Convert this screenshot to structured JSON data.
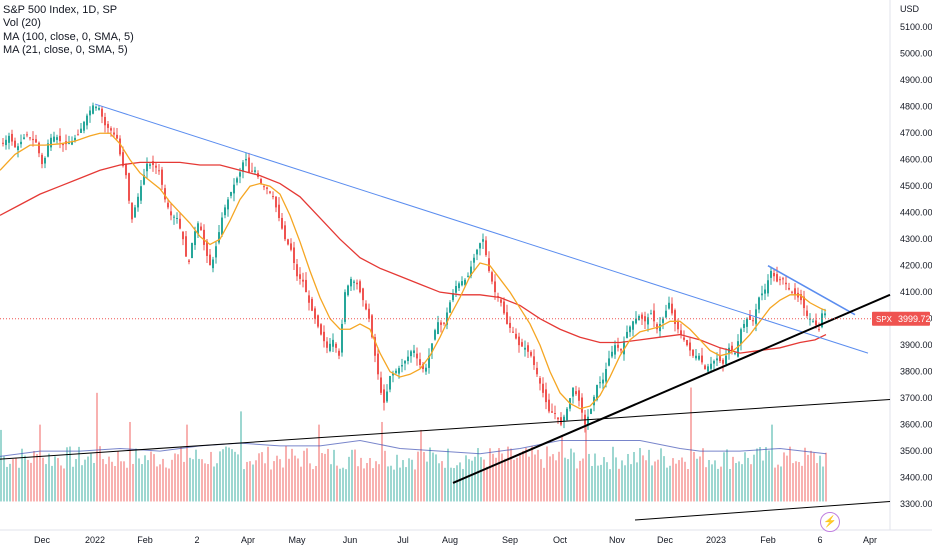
{
  "chart_data": {
    "type": "candlestick",
    "legend": {
      "line1": "S&P 500 Index, 1D, SP",
      "line2": "Vol (20)",
      "line3": "MA (100, close, 0, SMA, 5)",
      "line4": "MA (21, close, 0, SMA, 5)"
    },
    "currency_label": "USD",
    "y_ticks": [
      "5100.00",
      "5000.00",
      "4900.00",
      "4800.00",
      "4700.00",
      "4600.00",
      "4500.00",
      "4400.00",
      "4300.00",
      "4200.00",
      "4100.00",
      "4000.00",
      "3900.00",
      "3800.00",
      "3700.00",
      "3600.00",
      "3500.00",
      "3400.00",
      "3300.00"
    ],
    "x_ticks": [
      "Dec",
      "2022",
      "Feb",
      "2",
      "Apr",
      "May",
      "Jun",
      "Jul",
      "Aug",
      "Sep",
      "Oct",
      "Nov",
      "Dec",
      "2023",
      "Feb",
      "6",
      "Apr"
    ],
    "ylim": [
      3240,
      5150
    ],
    "price_badge": {
      "symbol": "SPX",
      "value": "3999.72"
    },
    "last_price": 3999.72,
    "colors": {
      "up": "#26a69a",
      "down": "#ef5350",
      "ma21": "#f5a623",
      "ma100": "#e53935",
      "trend_blue": "#5b8def",
      "trend_black": "#000000",
      "vol_ma": "#3f51b5"
    },
    "price_path": [
      [
        0,
        4650
      ],
      [
        8,
        4690
      ],
      [
        15,
        4640
      ],
      [
        25,
        4695
      ],
      [
        35,
        4665
      ],
      [
        42,
        4570
      ],
      [
        48,
        4680
      ],
      [
        55,
        4690
      ],
      [
        62,
        4655
      ],
      [
        70,
        4665
      ],
      [
        78,
        4700
      ],
      [
        85,
        4760
      ],
      [
        92,
        4805
      ],
      [
        98,
        4795
      ],
      [
        104,
        4730
      ],
      [
        110,
        4710
      ],
      [
        116,
        4680
      ],
      [
        120,
        4600
      ],
      [
        126,
        4530
      ],
      [
        130,
        4360
      ],
      [
        134,
        4420
      ],
      [
        140,
        4500
      ],
      [
        146,
        4585
      ],
      [
        152,
        4580
      ],
      [
        158,
        4560
      ],
      [
        164,
        4450
      ],
      [
        170,
        4390
      ],
      [
        176,
        4380
      ],
      [
        182,
        4300
      ],
      [
        187,
        4190
      ],
      [
        192,
        4310
      ],
      [
        198,
        4370
      ],
      [
        204,
        4260
      ],
      [
        210,
        4190
      ],
      [
        216,
        4290
      ],
      [
        222,
        4400
      ],
      [
        228,
        4460
      ],
      [
        234,
        4515
      ],
      [
        240,
        4560
      ],
      [
        244,
        4620
      ],
      [
        248,
        4550
      ],
      [
        254,
        4560
      ],
      [
        260,
        4510
      ],
      [
        266,
        4490
      ],
      [
        272,
        4460
      ],
      [
        278,
        4380
      ],
      [
        284,
        4300
      ],
      [
        290,
        4260
      ],
      [
        296,
        4160
      ],
      [
        302,
        4140
      ],
      [
        308,
        4060
      ],
      [
        314,
        4000
      ],
      [
        320,
        3940
      ],
      [
        326,
        3890
      ],
      [
        332,
        3920
      ],
      [
        338,
        3860
      ],
      [
        344,
        4100
      ],
      [
        350,
        4150
      ],
      [
        356,
        4130
      ],
      [
        362,
        4070
      ],
      [
        368,
        4000
      ],
      [
        374,
        3860
      ],
      [
        380,
        3720
      ],
      [
        384,
        3670
      ],
      [
        388,
        3780
      ],
      [
        394,
        3800
      ],
      [
        400,
        3820
      ],
      [
        406,
        3850
      ],
      [
        412,
        3890
      ],
      [
        418,
        3830
      ],
      [
        424,
        3800
      ],
      [
        430,
        3890
      ],
      [
        436,
        3990
      ],
      [
        442,
        3970
      ],
      [
        448,
        4050
      ],
      [
        454,
        4120
      ],
      [
        460,
        4140
      ],
      [
        466,
        4150
      ],
      [
        472,
        4220
      ],
      [
        478,
        4280
      ],
      [
        482,
        4300
      ],
      [
        488,
        4180
      ],
      [
        494,
        4100
      ],
      [
        500,
        4060
      ],
      [
        506,
        3980
      ],
      [
        512,
        3950
      ],
      [
        518,
        3900
      ],
      [
        524,
        3890
      ],
      [
        530,
        3860
      ],
      [
        536,
        3790
      ],
      [
        542,
        3720
      ],
      [
        548,
        3650
      ],
      [
        554,
        3640
      ],
      [
        560,
        3600
      ],
      [
        566,
        3660
      ],
      [
        572,
        3740
      ],
      [
        578,
        3690
      ],
      [
        584,
        3600
      ],
      [
        590,
        3660
      ],
      [
        596,
        3750
      ],
      [
        602,
        3770
      ],
      [
        608,
        3850
      ],
      [
        614,
        3900
      ],
      [
        620,
        3880
      ],
      [
        626,
        3950
      ],
      [
        632,
        3990
      ],
      [
        638,
        4010
      ],
      [
        644,
        3990
      ],
      [
        650,
        4020
      ],
      [
        656,
        3960
      ],
      [
        662,
        4000
      ],
      [
        668,
        4060
      ],
      [
        674,
        3980
      ],
      [
        680,
        3940
      ],
      [
        686,
        3900
      ],
      [
        692,
        3860
      ],
      [
        698,
        3860
      ],
      [
        704,
        3810
      ],
      [
        710,
        3830
      ],
      [
        716,
        3850
      ],
      [
        722,
        3830
      ],
      [
        728,
        3890
      ],
      [
        734,
        3870
      ],
      [
        740,
        3960
      ],
      [
        746,
        4000
      ],
      [
        752,
        3990
      ],
      [
        758,
        4080
      ],
      [
        764,
        4110
      ],
      [
        770,
        4180
      ],
      [
        776,
        4140
      ],
      [
        782,
        4150
      ],
      [
        788,
        4110
      ],
      [
        794,
        4090
      ],
      [
        800,
        4070
      ],
      [
        806,
        4010
      ],
      [
        812,
        3990
      ],
      [
        818,
        3960
      ],
      [
        822,
        4040
      ],
      [
        826,
        3999.72
      ]
    ],
    "ma21_path": [
      [
        0,
        4560
      ],
      [
        15,
        4620
      ],
      [
        30,
        4655
      ],
      [
        45,
        4655
      ],
      [
        60,
        4660
      ],
      [
        75,
        4670
      ],
      [
        90,
        4690
      ],
      [
        100,
        4700
      ],
      [
        110,
        4700
      ],
      [
        120,
        4660
      ],
      [
        130,
        4600
      ],
      [
        140,
        4550
      ],
      [
        150,
        4520
      ],
      [
        160,
        4490
      ],
      [
        170,
        4440
      ],
      [
        180,
        4400
      ],
      [
        190,
        4360
      ],
      [
        200,
        4310
      ],
      [
        210,
        4280
      ],
      [
        220,
        4300
      ],
      [
        230,
        4370
      ],
      [
        240,
        4450
      ],
      [
        250,
        4500
      ],
      [
        260,
        4510
      ],
      [
        270,
        4500
      ],
      [
        280,
        4470
      ],
      [
        290,
        4390
      ],
      [
        300,
        4290
      ],
      [
        310,
        4180
      ],
      [
        320,
        4080
      ],
      [
        330,
        4000
      ],
      [
        340,
        3960
      ],
      [
        350,
        3960
      ],
      [
        360,
        3980
      ],
      [
        370,
        3960
      ],
      [
        380,
        3870
      ],
      [
        390,
        3800
      ],
      [
        400,
        3780
      ],
      [
        410,
        3790
      ],
      [
        420,
        3810
      ],
      [
        430,
        3860
      ],
      [
        440,
        3930
      ],
      [
        450,
        4010
      ],
      [
        460,
        4080
      ],
      [
        470,
        4160
      ],
      [
        480,
        4210
      ],
      [
        490,
        4200
      ],
      [
        500,
        4150
      ],
      [
        510,
        4100
      ],
      [
        520,
        4040
      ],
      [
        530,
        3980
      ],
      [
        540,
        3900
      ],
      [
        550,
        3800
      ],
      [
        560,
        3720
      ],
      [
        570,
        3680
      ],
      [
        580,
        3660
      ],
      [
        590,
        3670
      ],
      [
        600,
        3710
      ],
      [
        610,
        3780
      ],
      [
        620,
        3860
      ],
      [
        630,
        3920
      ],
      [
        640,
        3950
      ],
      [
        650,
        3960
      ],
      [
        660,
        3970
      ],
      [
        670,
        3990
      ],
      [
        680,
        3990
      ],
      [
        690,
        3960
      ],
      [
        700,
        3920
      ],
      [
        710,
        3880
      ],
      [
        720,
        3860
      ],
      [
        730,
        3870
      ],
      [
        740,
        3900
      ],
      [
        750,
        3940
      ],
      [
        760,
        3990
      ],
      [
        770,
        4040
      ],
      [
        780,
        4070
      ],
      [
        790,
        4090
      ],
      [
        800,
        4090
      ],
      [
        810,
        4060
      ],
      [
        820,
        4040
      ],
      [
        826,
        4030
      ]
    ],
    "ma100_path": [
      [
        0,
        4390
      ],
      [
        20,
        4430
      ],
      [
        40,
        4470
      ],
      [
        60,
        4500
      ],
      [
        80,
        4530
      ],
      [
        100,
        4560
      ],
      [
        120,
        4580
      ],
      [
        140,
        4590
      ],
      [
        160,
        4590
      ],
      [
        180,
        4590
      ],
      [
        200,
        4580
      ],
      [
        220,
        4580
      ],
      [
        240,
        4560
      ],
      [
        260,
        4540
      ],
      [
        280,
        4510
      ],
      [
        300,
        4460
      ],
      [
        320,
        4380
      ],
      [
        340,
        4300
      ],
      [
        360,
        4230
      ],
      [
        380,
        4190
      ],
      [
        400,
        4160
      ],
      [
        420,
        4130
      ],
      [
        440,
        4100
      ],
      [
        460,
        4090
      ],
      [
        480,
        4090
      ],
      [
        500,
        4080
      ],
      [
        520,
        4050
      ],
      [
        540,
        4000
      ],
      [
        560,
        3960
      ],
      [
        580,
        3930
      ],
      [
        600,
        3910
      ],
      [
        620,
        3910
      ],
      [
        640,
        3920
      ],
      [
        660,
        3930
      ],
      [
        680,
        3940
      ],
      [
        700,
        3920
      ],
      [
        720,
        3890
      ],
      [
        740,
        3870
      ],
      [
        760,
        3880
      ],
      [
        780,
        3890
      ],
      [
        800,
        3910
      ],
      [
        815,
        3920
      ],
      [
        826,
        3940
      ]
    ],
    "volume": {
      "baseline": 3310,
      "seed": 7,
      "spikes": [
        [
          0,
          3580
        ],
        [
          40,
          3600
        ],
        [
          95,
          3720
        ],
        [
          130,
          3610
        ],
        [
          185,
          3600
        ],
        [
          240,
          3650
        ],
        [
          318,
          3600
        ],
        [
          380,
          3610
        ],
        [
          420,
          3580
        ],
        [
          560,
          3560
        ],
        [
          585,
          3600
        ],
        [
          690,
          3740
        ],
        [
          770,
          3600
        ]
      ],
      "ma_path": [
        [
          0,
          3480
        ],
        [
          40,
          3500
        ],
        [
          80,
          3500
        ],
        [
          120,
          3510
        ],
        [
          160,
          3500
        ],
        [
          200,
          3520
        ],
        [
          240,
          3530
        ],
        [
          280,
          3520
        ],
        [
          320,
          3520
        ],
        [
          360,
          3540
        ],
        [
          400,
          3510
        ],
        [
          440,
          3500
        ],
        [
          480,
          3490
        ],
        [
          520,
          3510
        ],
        [
          560,
          3540
        ],
        [
          600,
          3540
        ],
        [
          640,
          3540
        ],
        [
          680,
          3510
        ],
        [
          700,
          3500
        ],
        [
          740,
          3500
        ],
        [
          780,
          3510
        ],
        [
          826,
          3490
        ]
      ]
    },
    "trendlines": [
      {
        "color": "blue",
        "from": [
          95,
          4810
        ],
        "to": [
          868,
          3870
        ],
        "width": 1
      },
      {
        "color": "blue",
        "from": [
          768,
          4200
        ],
        "to": [
          855,
          4015
        ],
        "width": 1.6
      },
      {
        "color": "black",
        "from": [
          453,
          3380
        ],
        "to": [
          890,
          4090
        ],
        "width": 2
      },
      {
        "color": "black",
        "from": [
          0,
          3470
        ],
        "to": [
          890,
          3695
        ],
        "width": 1
      },
      {
        "color": "black",
        "from": [
          635,
          3240
        ],
        "to": [
          890,
          3310
        ],
        "width": 1
      }
    ]
  }
}
